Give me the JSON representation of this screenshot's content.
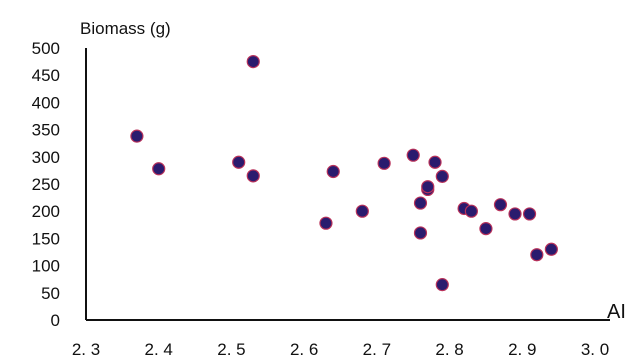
{
  "chart_data": {
    "type": "scatter",
    "title": "",
    "xlabel": "AI",
    "ylabel": "Biomass (g)",
    "xlim": [
      2.3,
      3.0
    ],
    "ylim": [
      0,
      500
    ],
    "x_ticks": [
      2.3,
      2.4,
      2.5,
      2.6,
      2.7,
      2.8,
      2.9,
      3.0
    ],
    "x_tick_labels": [
      "2. 3",
      "2. 4",
      "2. 5",
      "2. 6",
      "2. 7",
      "2. 8",
      "2. 9",
      "3. 0"
    ],
    "y_ticks": [
      0,
      50,
      100,
      150,
      200,
      250,
      300,
      350,
      400,
      450,
      500
    ],
    "y_tick_labels": [
      "0",
      "50",
      "100",
      "150",
      "200",
      "250",
      "300",
      "350",
      "400",
      "450",
      "500"
    ],
    "grid": false,
    "legend": "none",
    "series": [
      {
        "color": "#2a1b6e",
        "points": [
          {
            "x": 2.37,
            "y": 338
          },
          {
            "x": 2.4,
            "y": 278
          },
          {
            "x": 2.51,
            "y": 290
          },
          {
            "x": 2.53,
            "y": 265
          },
          {
            "x": 2.53,
            "y": 475
          },
          {
            "x": 2.63,
            "y": 178
          },
          {
            "x": 2.64,
            "y": 273
          },
          {
            "x": 2.68,
            "y": 200
          },
          {
            "x": 2.71,
            "y": 288
          },
          {
            "x": 2.75,
            "y": 303
          },
          {
            "x": 2.76,
            "y": 215
          },
          {
            "x": 2.76,
            "y": 160
          },
          {
            "x": 2.77,
            "y": 240
          },
          {
            "x": 2.77,
            "y": 245
          },
          {
            "x": 2.78,
            "y": 290
          },
          {
            "x": 2.79,
            "y": 264
          },
          {
            "x": 2.79,
            "y": 65
          },
          {
            "x": 2.82,
            "y": 205
          },
          {
            "x": 2.83,
            "y": 200
          },
          {
            "x": 2.85,
            "y": 168
          },
          {
            "x": 2.87,
            "y": 212
          },
          {
            "x": 2.89,
            "y": 195
          },
          {
            "x": 2.91,
            "y": 195
          },
          {
            "x": 2.92,
            "y": 120
          },
          {
            "x": 2.94,
            "y": 130
          }
        ]
      }
    ]
  }
}
